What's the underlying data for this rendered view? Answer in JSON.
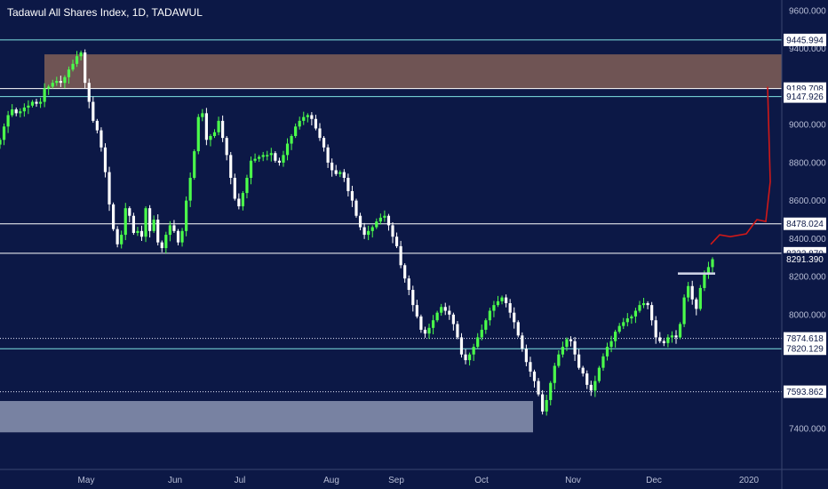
{
  "header": {
    "title": "Tadawul All Shares Index, 1D, TADAWUL"
  },
  "colors": {
    "background": "#0c1846",
    "candle_up": "#4bff4b",
    "candle_down": "#ffffff",
    "level_line": "#7fe3e3",
    "white_line": "#ffffff",
    "resistance_zone": "#7a5b55",
    "support_zone": "#8c95b3",
    "projection": "#d01818",
    "axis_text": "#b8bed6"
  },
  "chart_data": {
    "type": "candlestick",
    "title": "Tadawul All Shares Index, 1D, TADAWUL",
    "x_ticks": [
      "May",
      "Jun",
      "Jul",
      "Aug",
      "Sep",
      "Oct",
      "Nov",
      "Dec",
      "2020"
    ],
    "y_ticks": [
      "9600.000",
      "9400.000",
      "9000.000",
      "8800.000",
      "8600.000",
      "8400.000",
      "8200.000",
      "8000.000",
      "7400.000"
    ],
    "ylim": [
      7100,
      9650
    ],
    "horizontal_levels": [
      {
        "label": "9445.994",
        "value": 9445.994,
        "style": "cyan"
      },
      {
        "label": "9189.708",
        "value": 9189.708,
        "style": "white"
      },
      {
        "label": "9147.926",
        "value": 9147.926,
        "style": "cyan"
      },
      {
        "label": "8478.024",
        "value": 8478.024,
        "style": "white"
      },
      {
        "label": "8322.870",
        "value": 8322.87,
        "style": "white"
      },
      {
        "label": "8291.390",
        "value": 8291.39,
        "style": "price"
      },
      {
        "label": "7874.618",
        "value": 7874.618,
        "style": "dotted"
      },
      {
        "label": "7820.129",
        "value": 7820.129,
        "style": "cyan"
      },
      {
        "label": "7593.862",
        "value": 7593.862,
        "style": "dotted"
      }
    ],
    "zones": [
      {
        "name": "resistance",
        "from": 9189.708,
        "to": 9370
      },
      {
        "name": "support",
        "from": 7380,
        "to": 7545
      }
    ],
    "price_series": [
      8920,
      8990,
      9050,
      9080,
      9060,
      9070,
      9090,
      9100,
      9120,
      9110,
      9120,
      9190,
      9200,
      9220,
      9230,
      9220,
      9250,
      9290,
      9320,
      9360,
      9380,
      9220,
      9120,
      9020,
      8970,
      8880,
      8750,
      8580,
      8450,
      8370,
      8420,
      8560,
      8520,
      8430,
      8440,
      8410,
      8560,
      8440,
      8500,
      8380,
      8350,
      8420,
      8470,
      8440,
      8380,
      8440,
      8600,
      8720,
      8860,
      9040,
      9060,
      8920,
      8940,
      8960,
      9020,
      8930,
      8840,
      8720,
      8610,
      8570,
      8640,
      8720,
      8810,
      8820,
      8830,
      8840,
      8840,
      8850,
      8810,
      8800,
      8840,
      8900,
      8940,
      8990,
      9020,
      9040,
      9050,
      9030,
      8980,
      8930,
      8880,
      8800,
      8760,
      8740,
      8750,
      8720,
      8650,
      8600,
      8520,
      8460,
      8420,
      8440,
      8460,
      8490,
      8510,
      8520,
      8470,
      8410,
      8360,
      8260,
      8190,
      8130,
      8050,
      7990,
      7920,
      7900,
      7930,
      7970,
      8010,
      8040,
      8020,
      8000,
      7950,
      7880,
      7790,
      7760,
      7790,
      7830,
      7880,
      7920,
      7970,
      8020,
      8050,
      8070,
      8090,
      8060,
      8010,
      7960,
      7890,
      7820,
      7750,
      7700,
      7650,
      7580,
      7490,
      7550,
      7640,
      7730,
      7790,
      7830,
      7870,
      7860,
      7790,
      7720,
      7690,
      7630,
      7600,
      7650,
      7720,
      7780,
      7830,
      7860,
      7910,
      7940,
      7960,
      7980,
      7990,
      8020,
      8050,
      8060,
      8050,
      7970,
      7880,
      7860,
      7850,
      7880,
      7890,
      7880,
      7950,
      8090,
      8150,
      8080,
      8030,
      8140,
      8210,
      8250,
      8291.39
    ],
    "consolidation_box": {
      "from": 8210,
      "to": 8222
    },
    "projection_path": [
      8370,
      8420,
      8410,
      8425,
      8500,
      8490,
      8700,
      9200
    ]
  }
}
